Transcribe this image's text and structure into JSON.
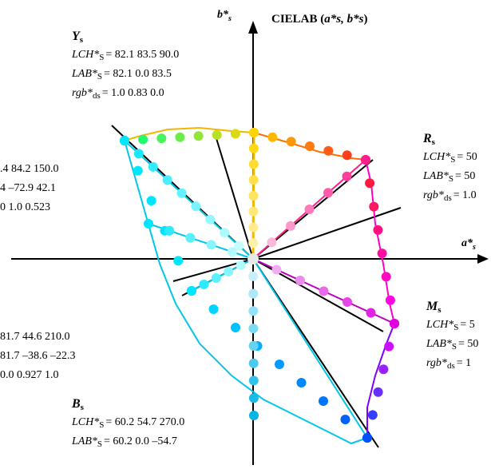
{
  "title": {
    "main": "CIELAB (",
    "vars": "a*s, b*s",
    "close": ")"
  },
  "axes": {
    "b_label": "b*",
    "b_sub": "s",
    "a_label": "a*",
    "a_sub": "s"
  },
  "blocks": [
    {
      "id": "Y",
      "name": "Y",
      "sub": "s",
      "lines": [
        {
          "key": "LCH*",
          "sub": "S",
          "value": "= 82.1   83.5   90.0"
        },
        {
          "key": "LAB*",
          "sub": "S",
          "value": "= 82.1   0.0   83.5"
        },
        {
          "key": "rgb*",
          "sub": "ds",
          "value": "= 1.0   0.83   0.0"
        }
      ]
    },
    {
      "id": "R",
      "name": "R",
      "sub": "s",
      "lines": [
        {
          "key": "LCH*",
          "sub": "S",
          "value": "= 50"
        },
        {
          "key": "LAB*",
          "sub": "S",
          "value": "= 50"
        },
        {
          "key": "rgb*",
          "sub": "ds",
          "value": "= 1.0"
        }
      ]
    },
    {
      "id": "G",
      "name": "",
      "sub": "",
      "lines": [
        {
          "key": "",
          "sub": "",
          "value": ".4   84.2   150.0"
        },
        {
          "key": "",
          "sub": "",
          "value": "4   –72.9   42.1"
        },
        {
          "key": "",
          "sub": "",
          "value": "0   1.0   0.523"
        }
      ]
    },
    {
      "id": "M",
      "name": "M",
      "sub": "s",
      "lines": [
        {
          "key": "LCH*",
          "sub": "S",
          "value": "= 5"
        },
        {
          "key": "LAB*",
          "sub": "S",
          "value": "= 50"
        },
        {
          "key": "rgb*",
          "sub": "ds",
          "value": "= 1"
        }
      ]
    },
    {
      "id": "C",
      "name": "",
      "sub": "",
      "lines": [
        {
          "key": "",
          "sub": "",
          "value": "81.7   44.6   210.0"
        },
        {
          "key": "",
          "sub": "",
          "value": "81.7   –38.6   –22.3"
        },
        {
          "key": "",
          "sub": "",
          "value": "0.0   0.927   1.0"
        }
      ]
    },
    {
      "id": "B",
      "name": "B",
      "sub": "s",
      "lines": [
        {
          "key": "LCH*",
          "sub": "S",
          "value": "= 60.2   54.7   270.0"
        },
        {
          "key": "LAB*",
          "sub": "S",
          "value": "= 60.2   0.0   –54.7"
        }
      ]
    }
  ],
  "colors": {
    "yellow": "#ffd400",
    "orange": "#ff8a00",
    "red": "#ff2020",
    "magenta": "#ff00ff",
    "pink": "#ff1e8c",
    "violet": "#a000ff",
    "blue": "#0050ff",
    "cyan": "#00e6ff",
    "deepcyan": "#00b4e6",
    "green": "#00c800",
    "center": "#e8e8e8"
  }
}
